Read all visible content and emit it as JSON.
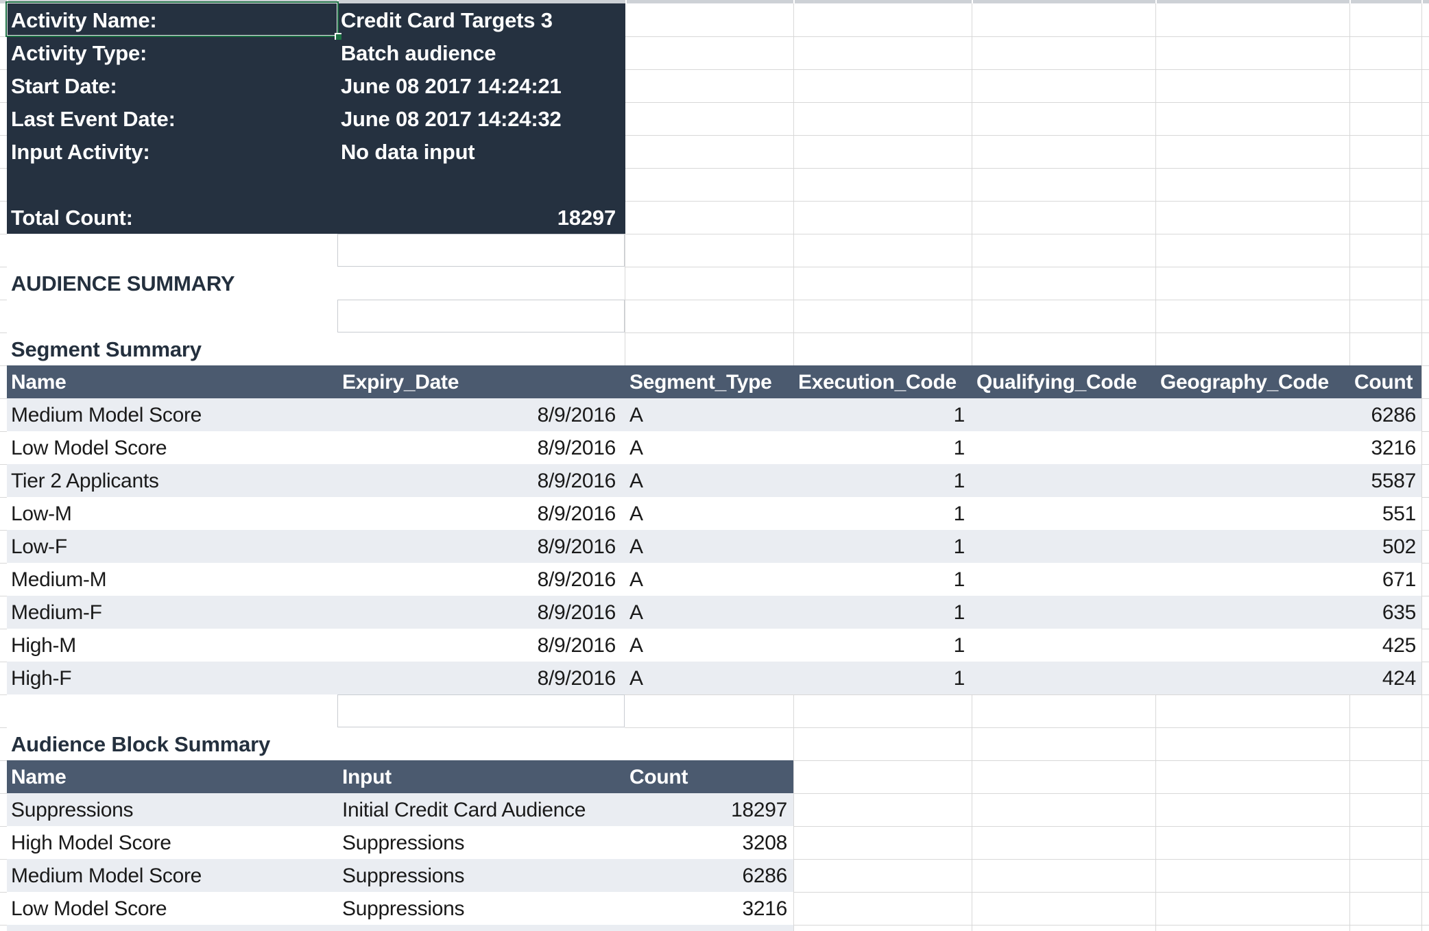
{
  "sheet": {
    "activity_panel": {
      "rows": [
        {
          "label": "Activity Name:",
          "value": "Credit Card Targets 3"
        },
        {
          "label": "Activity Type:",
          "value": "Batch audience"
        },
        {
          "label": "Start Date:",
          "value": "June 08 2017 14:24:21"
        },
        {
          "label": "Last Event Date:",
          "value": "June 08 2017 14:24:32"
        },
        {
          "label": "Input Activity:",
          "value": "No data input"
        },
        {
          "label": "",
          "value": ""
        },
        {
          "label": "Total Count:",
          "value": "18297"
        }
      ]
    },
    "headings": {
      "audience_summary": "AUDIENCE SUMMARY",
      "segment_summary": "Segment Summary",
      "audience_block_summary": "Audience Block Summary"
    },
    "segment_table": {
      "columns": [
        "Name",
        "Expiry_Date",
        "Segment_Type",
        "Execution_Code",
        "Qualifying_Code",
        "Geography_Code",
        "Count"
      ],
      "rows": [
        [
          "Medium Model Score",
          "8/9/2016",
          "A",
          "1",
          "",
          "",
          "6286"
        ],
        [
          "Low Model Score",
          "8/9/2016",
          "A",
          "1",
          "",
          "",
          "3216"
        ],
        [
          "Tier 2 Applicants",
          "8/9/2016",
          "A",
          "1",
          "",
          "",
          "5587"
        ],
        [
          "Low-M",
          "8/9/2016",
          "A",
          "1",
          "",
          "",
          "551"
        ],
        [
          "Low-F",
          "8/9/2016",
          "A",
          "1",
          "",
          "",
          "502"
        ],
        [
          "Medium-M",
          "8/9/2016",
          "A",
          "1",
          "",
          "",
          "671"
        ],
        [
          "Medium-F",
          "8/9/2016",
          "A",
          "1",
          "",
          "",
          "635"
        ],
        [
          "High-M",
          "8/9/2016",
          "A",
          "1",
          "",
          "",
          "425"
        ],
        [
          "High-F",
          "8/9/2016",
          "A",
          "1",
          "",
          "",
          "424"
        ]
      ]
    },
    "audience_block_table": {
      "columns": [
        "Name",
        "Input",
        "Count"
      ],
      "rows": [
        [
          "Suppressions",
          "Initial Credit Card Audience",
          "18297"
        ],
        [
          "High Model Score",
          "Suppressions",
          "3208"
        ],
        [
          "Medium Model Score",
          "Suppressions",
          "6286"
        ],
        [
          "Low Model Score",
          "Suppressions",
          "3216"
        ]
      ]
    },
    "colors": {
      "panel_bg": "#253140",
      "table_header_bg": "#4B5A6F",
      "row_alt_bg": "#EAEDF2",
      "selection_border": "#1E7145",
      "heading_text": "#24303E",
      "gridline": "#D8D8D8"
    }
  }
}
